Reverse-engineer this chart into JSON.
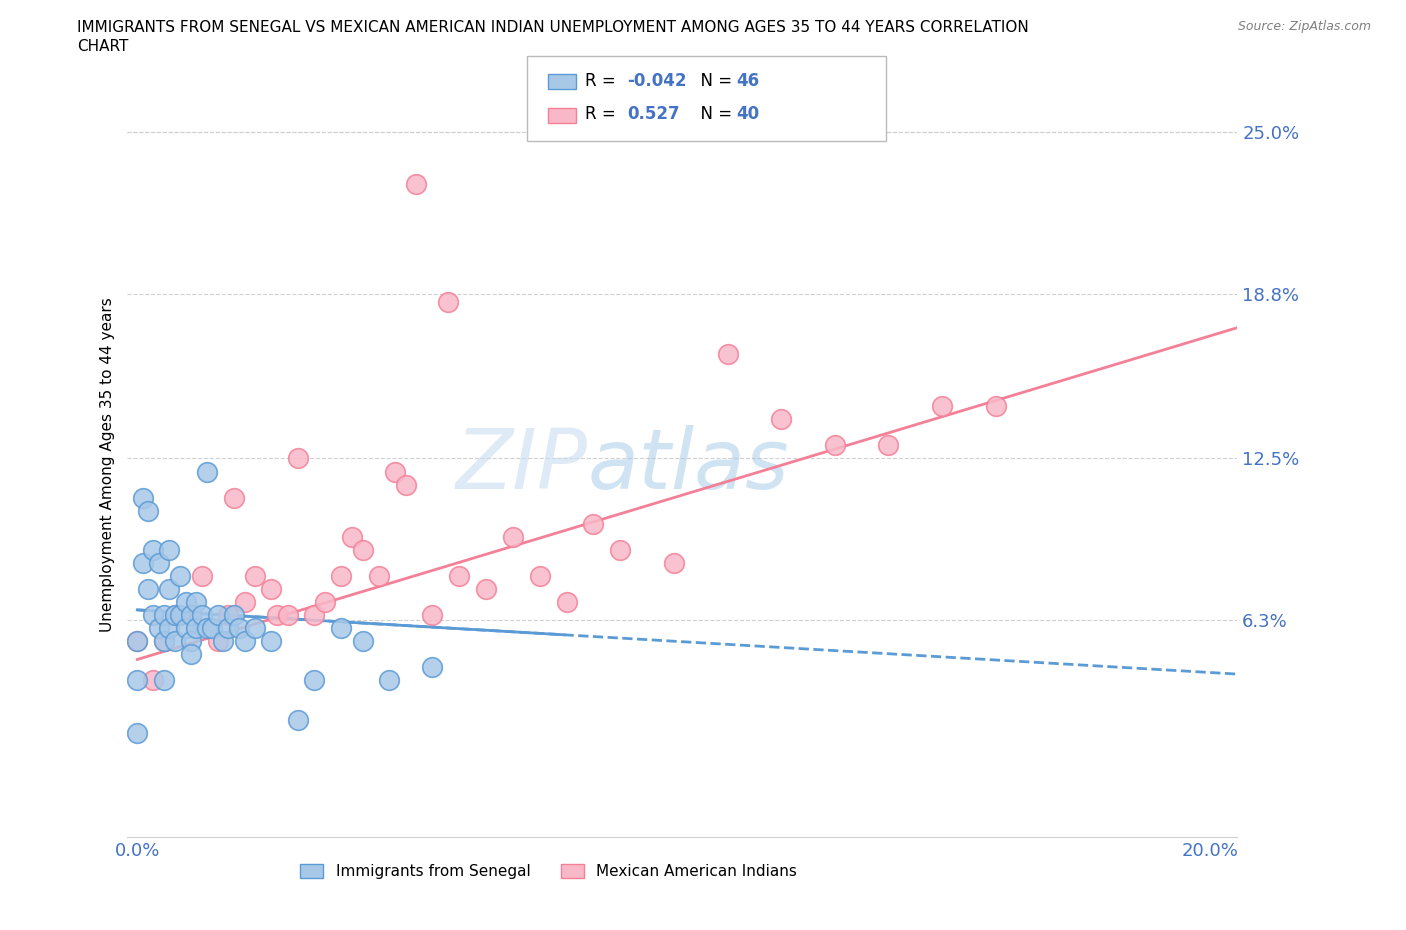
{
  "title_line1": "IMMIGRANTS FROM SENEGAL VS MEXICAN AMERICAN INDIAN UNEMPLOYMENT AMONG AGES 35 TO 44 YEARS CORRELATION",
  "title_line2": "CHART",
  "source_text": "Source: ZipAtlas.com",
  "ylabel": "Unemployment Among Ages 35 to 44 years",
  "xlim": [
    -0.002,
    0.205
  ],
  "ylim": [
    -0.02,
    0.265
  ],
  "xticks": [
    0.0,
    0.05,
    0.1,
    0.15,
    0.2
  ],
  "xtick_labels": [
    "0.0%",
    "",
    "",
    "",
    "20.0%"
  ],
  "ytick_values": [
    0.063,
    0.125,
    0.188,
    0.25
  ],
  "ytick_labels": [
    "6.3%",
    "12.5%",
    "18.8%",
    "25.0%"
  ],
  "color_blue_fill": "#a8c8e8",
  "color_blue_edge": "#5b9bd5",
  "color_pink_fill": "#f9b8c8",
  "color_pink_edge": "#f48098",
  "color_blue_line": "#5b9bd5",
  "color_pink_line": "#f48098",
  "color_axis_text": "#4472C4",
  "color_grid": "#d0d0d0",
  "legend_label1": "Immigrants from Senegal",
  "legend_label2": "Mexican American Indians",
  "senegal_x": [
    0.0,
    0.0,
    0.0,
    0.001,
    0.001,
    0.002,
    0.002,
    0.003,
    0.003,
    0.004,
    0.004,
    0.005,
    0.005,
    0.005,
    0.006,
    0.006,
    0.006,
    0.007,
    0.007,
    0.008,
    0.008,
    0.009,
    0.009,
    0.01,
    0.01,
    0.01,
    0.011,
    0.011,
    0.012,
    0.013,
    0.013,
    0.014,
    0.015,
    0.016,
    0.017,
    0.018,
    0.019,
    0.02,
    0.022,
    0.025,
    0.03,
    0.033,
    0.038,
    0.042,
    0.047,
    0.055
  ],
  "senegal_y": [
    0.055,
    0.04,
    0.02,
    0.11,
    0.085,
    0.105,
    0.075,
    0.09,
    0.065,
    0.085,
    0.06,
    0.065,
    0.055,
    0.04,
    0.09,
    0.075,
    0.06,
    0.065,
    0.055,
    0.08,
    0.065,
    0.07,
    0.06,
    0.065,
    0.055,
    0.05,
    0.07,
    0.06,
    0.065,
    0.12,
    0.06,
    0.06,
    0.065,
    0.055,
    0.06,
    0.065,
    0.06,
    0.055,
    0.06,
    0.055,
    0.025,
    0.04,
    0.06,
    0.055,
    0.04,
    0.045
  ],
  "mexican_x": [
    0.0,
    0.003,
    0.005,
    0.007,
    0.01,
    0.012,
    0.015,
    0.017,
    0.018,
    0.02,
    0.022,
    0.025,
    0.026,
    0.028,
    0.03,
    0.033,
    0.035,
    0.038,
    0.04,
    0.042,
    0.045,
    0.048,
    0.05,
    0.052,
    0.055,
    0.058,
    0.06,
    0.065,
    0.07,
    0.075,
    0.08,
    0.085,
    0.09,
    0.1,
    0.11,
    0.12,
    0.13,
    0.14,
    0.15,
    0.16
  ],
  "mexican_y": [
    0.055,
    0.04,
    0.055,
    0.065,
    0.065,
    0.08,
    0.055,
    0.065,
    0.11,
    0.07,
    0.08,
    0.075,
    0.065,
    0.065,
    0.125,
    0.065,
    0.07,
    0.08,
    0.095,
    0.09,
    0.08,
    0.12,
    0.115,
    0.23,
    0.065,
    0.185,
    0.08,
    0.075,
    0.095,
    0.08,
    0.07,
    0.1,
    0.09,
    0.085,
    0.165,
    0.14,
    0.13,
    0.13,
    0.145,
    0.145
  ],
  "trend_x_start": 0.0,
  "trend_x_end": 0.205,
  "blue_trend_intercept": 0.067,
  "blue_trend_slope": -0.12,
  "pink_trend_intercept": 0.048,
  "pink_trend_slope": 0.62
}
